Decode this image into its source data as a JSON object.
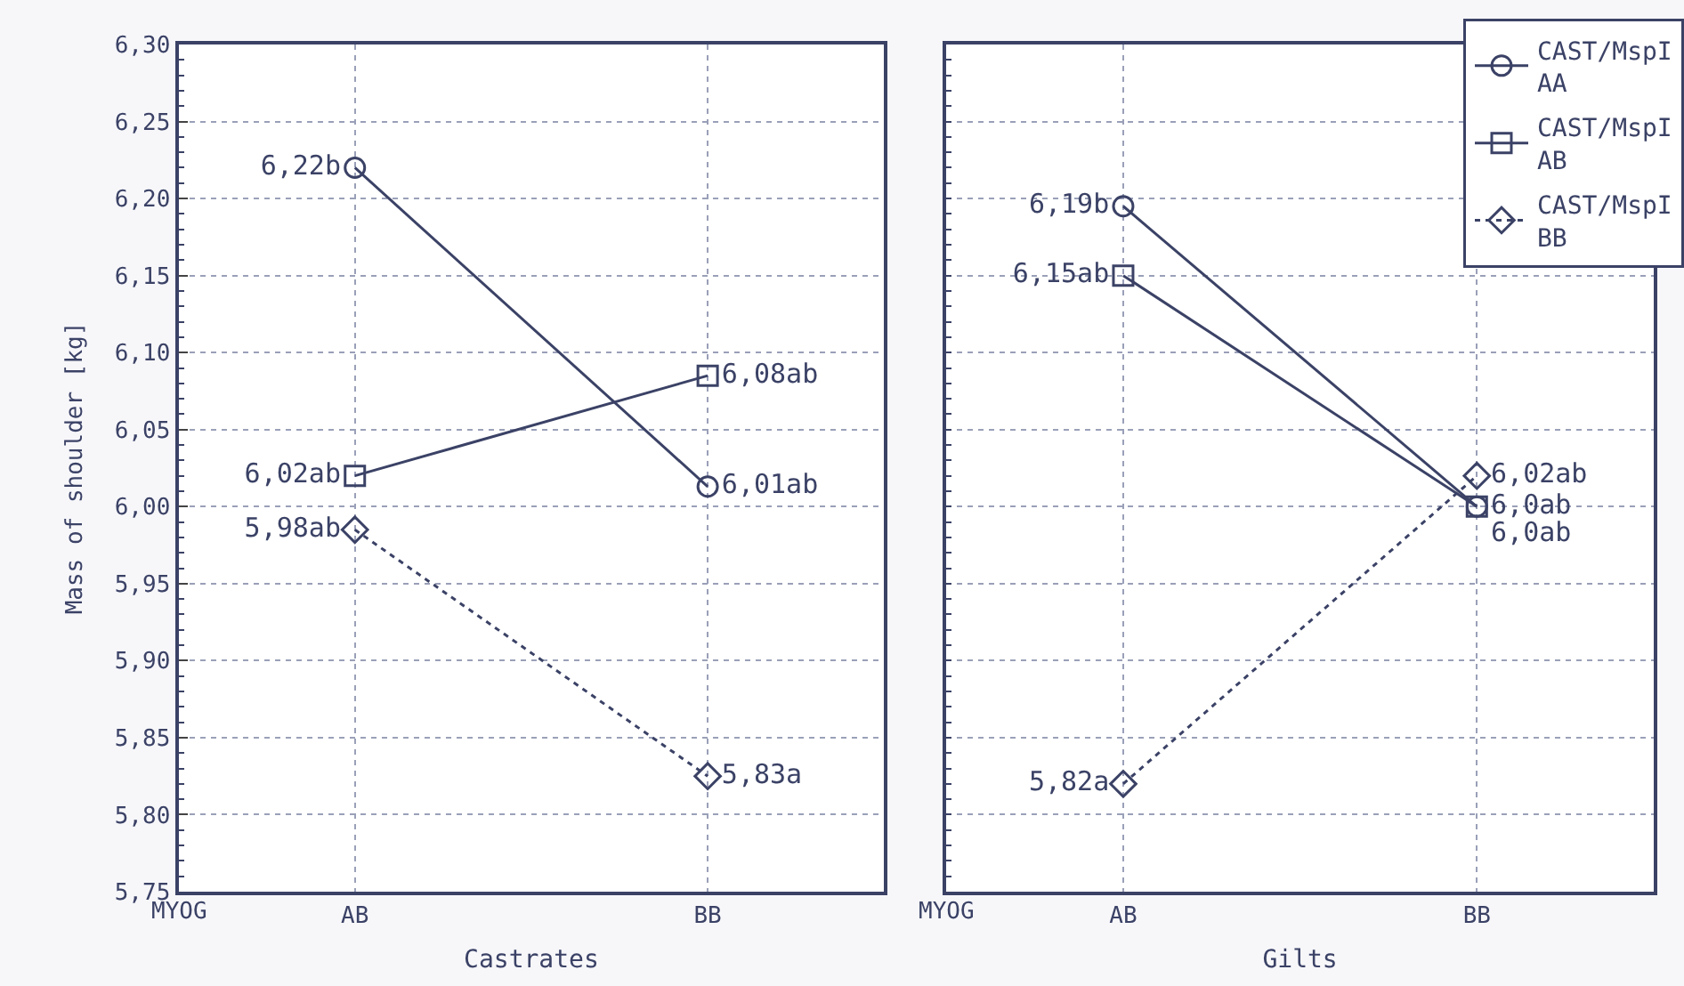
{
  "chart_data": [
    {
      "type": "line",
      "xlabel": "Castrates",
      "ylabel": "Mass of shoulder [kg]",
      "categories": [
        "AB",
        "BB"
      ],
      "annotations": [
        "MYOG"
      ],
      "ylim": [
        5.75,
        6.3
      ],
      "yticks": [
        {
          "value": 5.75,
          "label": "5,75"
        },
        {
          "value": 5.8,
          "label": "5,80"
        },
        {
          "value": 5.85,
          "label": "5,85"
        },
        {
          "value": 5.9,
          "label": "5,90"
        },
        {
          "value": 5.95,
          "label": "5,95"
        },
        {
          "value": 6.0,
          "label": "6,00"
        },
        {
          "value": 6.05,
          "label": "6,05"
        },
        {
          "value": 6.1,
          "label": "6,10"
        },
        {
          "value": 6.15,
          "label": "6,15"
        },
        {
          "value": 6.2,
          "label": "6,20"
        },
        {
          "value": 6.25,
          "label": "6,25"
        },
        {
          "value": 6.3,
          "label": "6,30"
        }
      ],
      "grid": true,
      "series": [
        {
          "color": "#3b4266",
          "marker": "circle",
          "line_style": "solid",
          "values": [
            6.22,
            6.013
          ],
          "value_labels": [
            "6,22b",
            "6,01ab"
          ]
        },
        {
          "color": "#3b4266",
          "marker": "square",
          "line_style": "solid",
          "values": [
            6.02,
            6.085
          ],
          "value_labels": [
            "6,02ab",
            "6,08ab"
          ]
        },
        {
          "color": "#3b4266",
          "marker": "diamond",
          "line_style": "dotted",
          "values": [
            5.985,
            5.825
          ],
          "value_labels": [
            "5,98ab",
            "5,83a"
          ]
        }
      ]
    },
    {
      "type": "line",
      "xlabel": "Gilts",
      "categories": [
        "AB",
        "BB"
      ],
      "annotations": [
        "MYOG"
      ],
      "ylim": [
        5.75,
        6.3
      ],
      "yticks": [
        {
          "value": 5.75,
          "label": null
        },
        {
          "value": 5.8,
          "label": null
        },
        {
          "value": 5.85,
          "label": null
        },
        {
          "value": 5.9,
          "label": null
        },
        {
          "value": 5.95,
          "label": null
        },
        {
          "value": 6.0,
          "label": null
        },
        {
          "value": 6.05,
          "label": null
        },
        {
          "value": 6.1,
          "label": null
        },
        {
          "value": 6.15,
          "label": null
        },
        {
          "value": 6.2,
          "label": null
        },
        {
          "value": 6.25,
          "label": null
        },
        {
          "value": 6.3,
          "label": null
        }
      ],
      "tick_labels": "x",
      "grid": true,
      "legend": "top right",
      "series": [
        {
          "name": "CAST/MspI AA",
          "color": "#3b4266",
          "marker": "circle",
          "line_style": "solid",
          "values": [
            6.195,
            6.0
          ],
          "value_labels": [
            "6,19b",
            "6,0ab"
          ]
        },
        {
          "name": "CAST/MspI AB",
          "color": "#3b4266",
          "marker": "square",
          "line_style": "solid",
          "values": [
            6.15,
            6.0
          ],
          "value_labels": [
            "6,15ab",
            "6,0ab"
          ]
        },
        {
          "name": "CAST/MspI BB",
          "color": "#3b4266",
          "marker": "diamond",
          "line_style": "dotted",
          "values": [
            5.82,
            6.02
          ],
          "value_labels": [
            "5,82a",
            "6,02ab"
          ]
        }
      ]
    }
  ]
}
